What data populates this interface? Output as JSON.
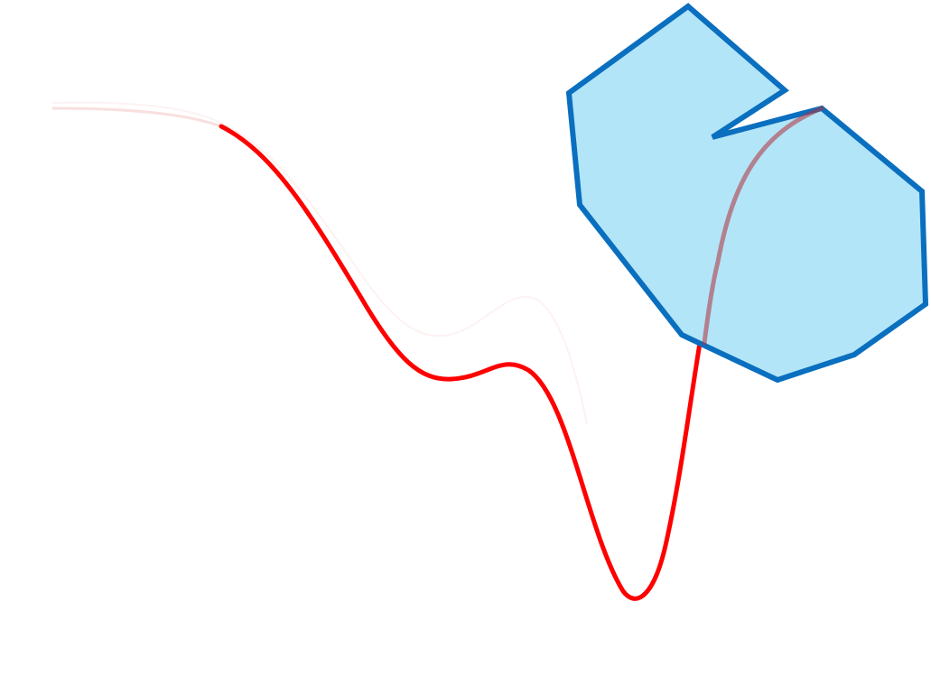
{
  "colors": {
    "background": "#ffffff",
    "curve": "#ff0000",
    "curve_faint": "#f2b8b8",
    "shape_fill": "#b3e5f8",
    "shape_stroke": "#0a6fbf"
  },
  "elements": {
    "curve": {
      "label": ""
    },
    "polygon": {
      "label": ""
    }
  }
}
